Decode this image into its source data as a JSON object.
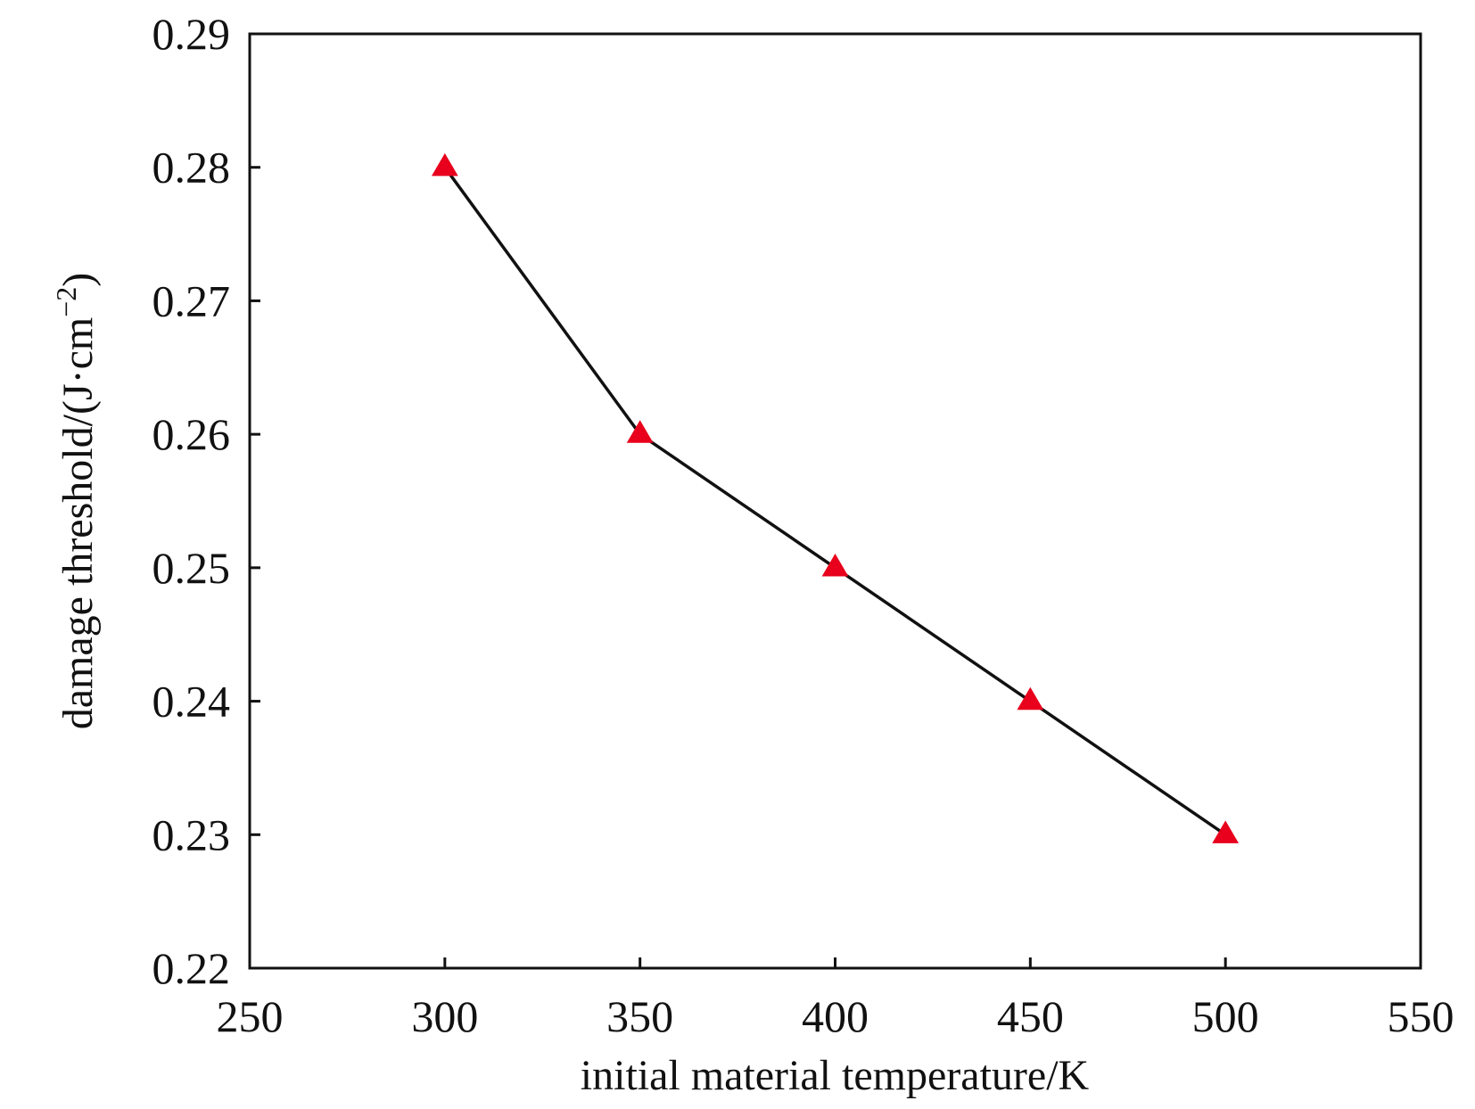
{
  "chart_data": {
    "type": "line",
    "xlabel": "initial material temperature/K",
    "ylabel": {
      "prefix": "damage threshold/(J·cm",
      "exponent": "−2",
      "suffix": ")"
    },
    "xlim": [
      250,
      550
    ],
    "ylim": [
      0.22,
      0.29
    ],
    "xticks": [
      "250",
      "300",
      "350",
      "400",
      "450",
      "500",
      "550"
    ],
    "yticks": [
      "0.22",
      "0.23",
      "0.24",
      "0.25",
      "0.26",
      "0.27",
      "0.28",
      "0.29"
    ],
    "series": [
      {
        "x": [
          300,
          350,
          400,
          450,
          500
        ],
        "values": [
          0.28,
          0.26,
          0.25,
          0.24,
          0.23
        ],
        "line_color": "#111111",
        "marker": "triangle",
        "marker_color": "#e8001c"
      }
    ],
    "grid": false,
    "legend": "none"
  }
}
